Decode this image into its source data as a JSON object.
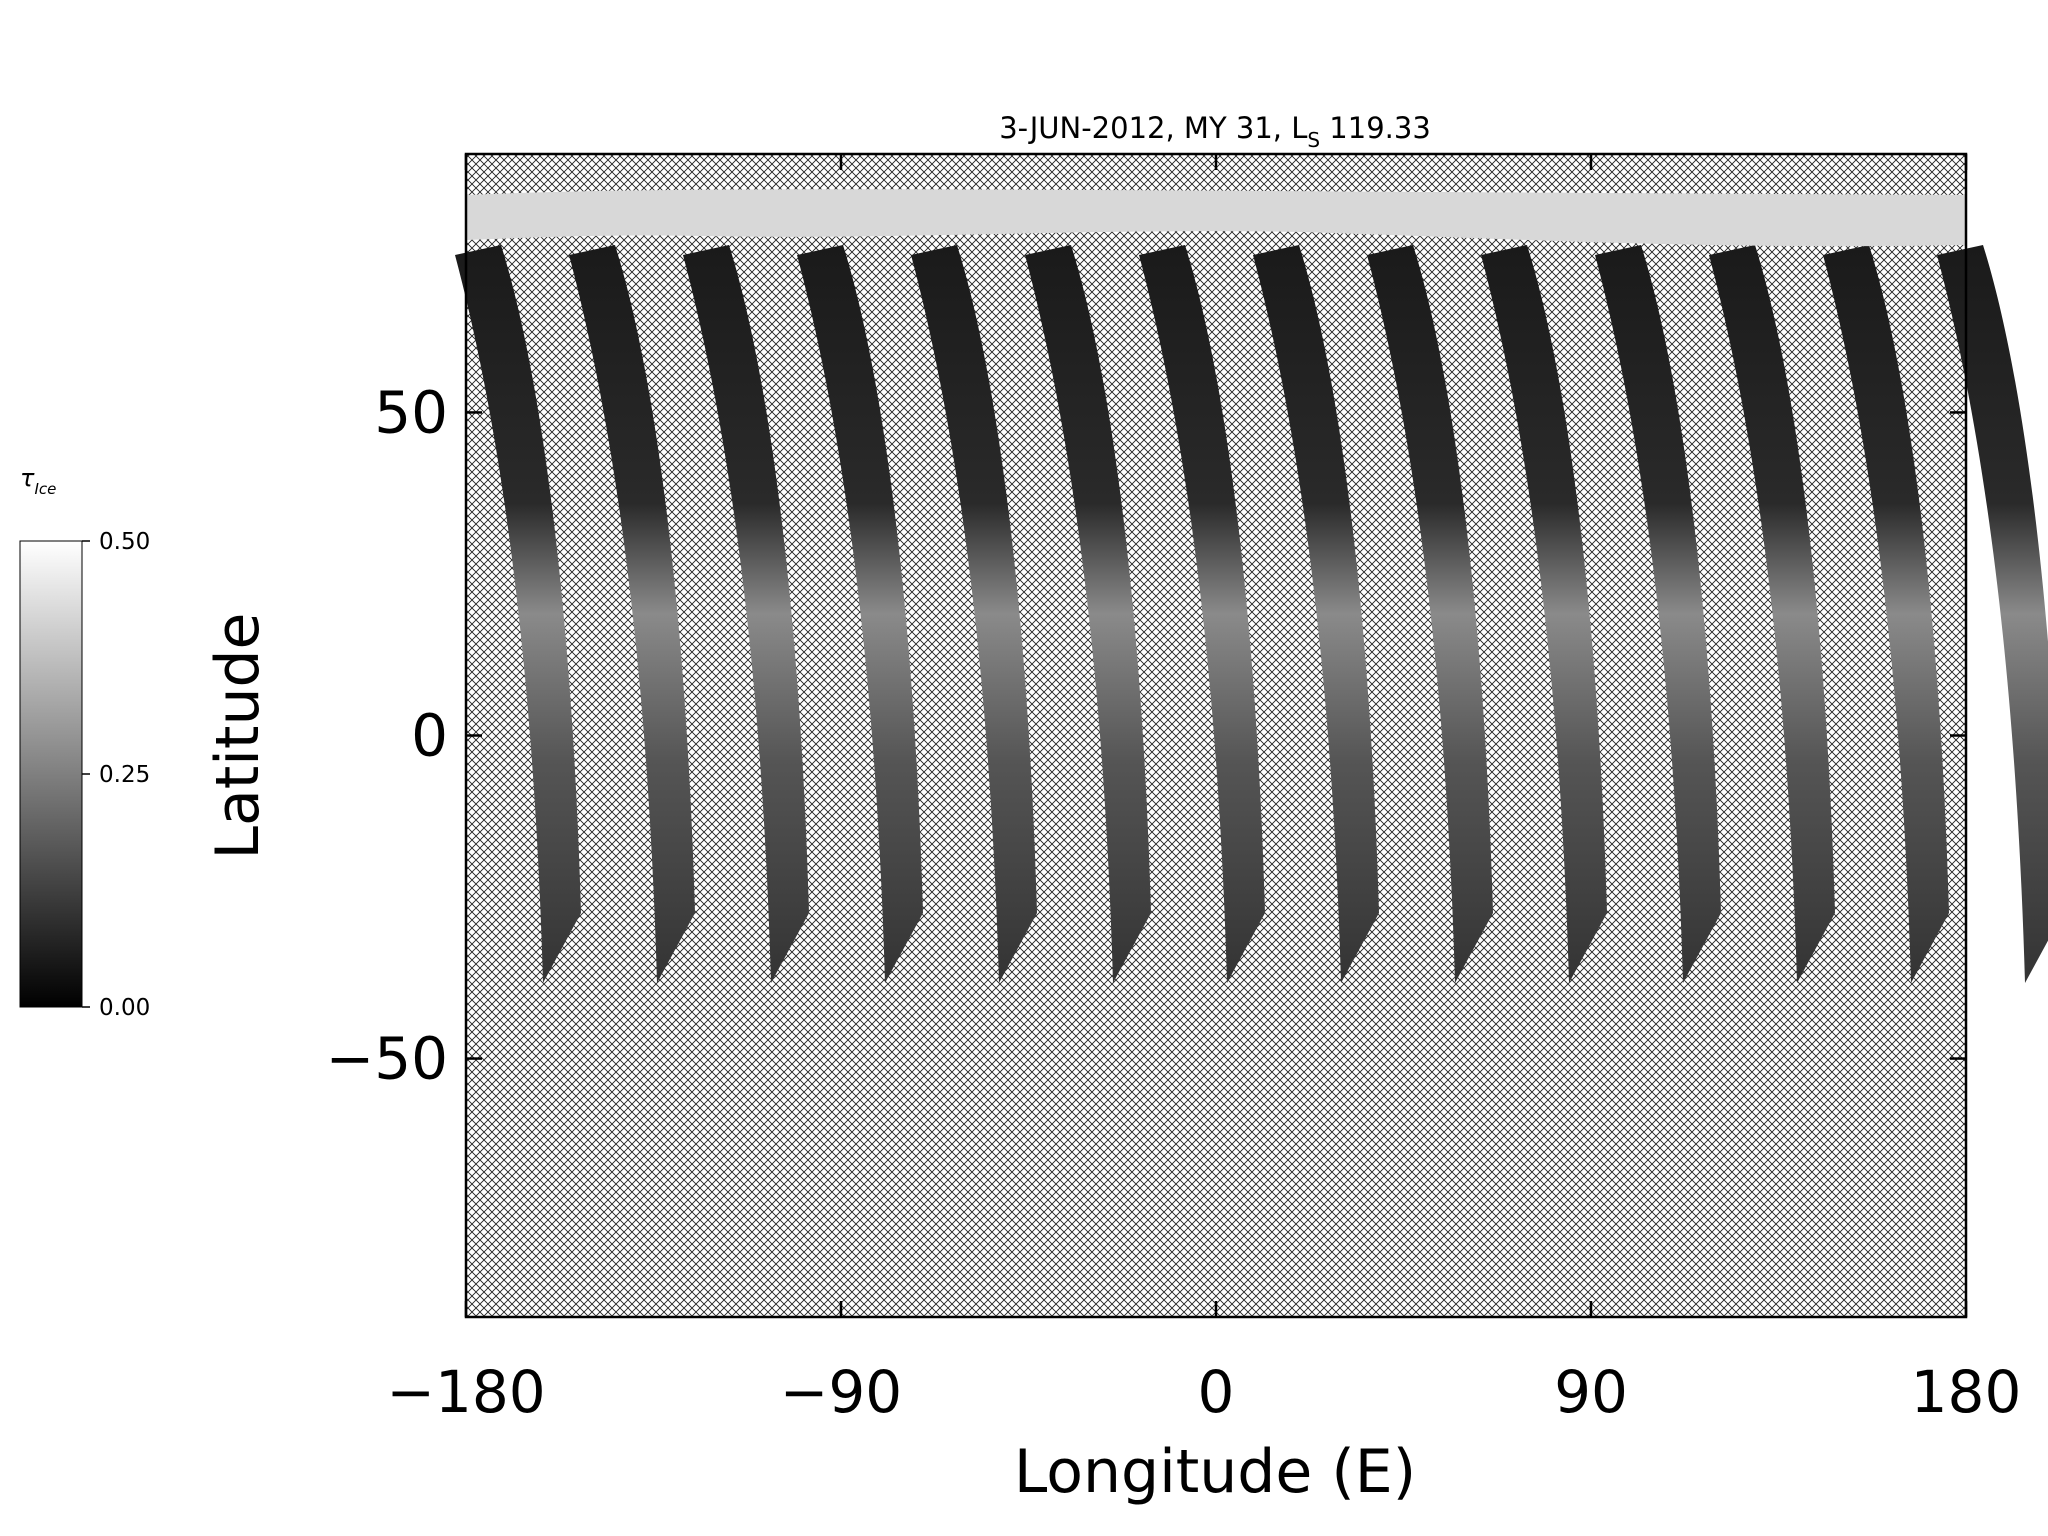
{
  "chart_data": {
    "type": "map",
    "title": {
      "text": "3-JUN-2012, MY 31,  L",
      "subscript": "S",
      "suffix": " 119.33"
    },
    "x_label": "Longitude (E)",
    "y_label": "Latitude",
    "xlim": [
      -180,
      180
    ],
    "xticks": [
      {
        "value": -180,
        "label": "−180"
      },
      {
        "value": -90,
        "label": "−90"
      },
      0,
      90,
      180
    ],
    "ylim": [
      -90,
      90
    ],
    "yticks": [
      {
        "value": -50,
        "label": "−50"
      },
      0,
      50
    ],
    "colorbar": {
      "label": "τ",
      "label_subscript": "Ice",
      "clim": [
        0,
        0.5
      ],
      "ticks": [
        {
          "value": 0,
          "label": "0.00"
        },
        {
          "value": 0.25,
          "label": "0.25"
        },
        {
          "value": 0.5,
          "label": "0.50"
        }
      ]
    }
  }
}
